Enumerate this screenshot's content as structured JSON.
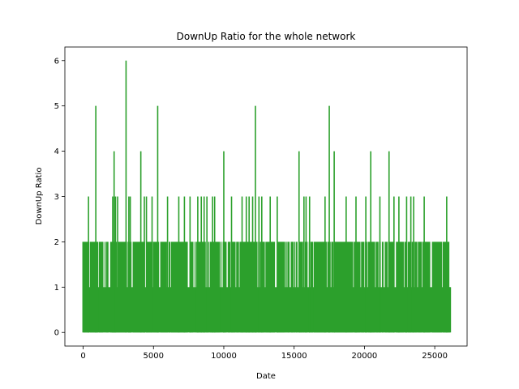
{
  "chart_data": {
    "type": "line",
    "title": "DownUp Ratio for the whole network",
    "xlabel": "Date",
    "ylabel": "DownUp Ratio",
    "xlim": [
      -1300,
      27300
    ],
    "ylim": [
      -0.3,
      6.3
    ],
    "xticks": [
      0,
      5000,
      10000,
      15000,
      20000,
      25000
    ],
    "yticks": [
      0,
      1,
      2,
      3,
      4,
      5,
      6
    ],
    "grid": false,
    "legend": "none",
    "series": [
      {
        "color": "#2ca02c",
        "x_range": [
          0,
          26100
        ],
        "baseline_band": [
          0,
          1
        ],
        "dense_level_2_spans": [
          [
            0,
            26100
          ]
        ],
        "peaks": [
          {
            "x": 380,
            "y": 3
          },
          {
            "x": 900,
            "y": 5
          },
          {
            "x": 2100,
            "y": 3
          },
          {
            "x": 2200,
            "y": 4
          },
          {
            "x": 2300,
            "y": 3
          },
          {
            "x": 2450,
            "y": 3
          },
          {
            "x": 3050,
            "y": 6
          },
          {
            "x": 3250,
            "y": 3
          },
          {
            "x": 3350,
            "y": 3
          },
          {
            "x": 4100,
            "y": 4
          },
          {
            "x": 4350,
            "y": 3
          },
          {
            "x": 4500,
            "y": 3
          },
          {
            "x": 4900,
            "y": 3
          },
          {
            "x": 5300,
            "y": 5
          },
          {
            "x": 6000,
            "y": 3
          },
          {
            "x": 6800,
            "y": 3
          },
          {
            "x": 7200,
            "y": 3
          },
          {
            "x": 7600,
            "y": 3
          },
          {
            "x": 8150,
            "y": 3
          },
          {
            "x": 8400,
            "y": 3
          },
          {
            "x": 8600,
            "y": 3
          },
          {
            "x": 8800,
            "y": 3
          },
          {
            "x": 9200,
            "y": 3
          },
          {
            "x": 9350,
            "y": 3
          },
          {
            "x": 10000,
            "y": 4
          },
          {
            "x": 10550,
            "y": 3
          },
          {
            "x": 11300,
            "y": 3
          },
          {
            "x": 11600,
            "y": 3
          },
          {
            "x": 11800,
            "y": 3
          },
          {
            "x": 12050,
            "y": 3
          },
          {
            "x": 12250,
            "y": 5
          },
          {
            "x": 12500,
            "y": 3
          },
          {
            "x": 12700,
            "y": 3
          },
          {
            "x": 13300,
            "y": 3
          },
          {
            "x": 13800,
            "y": 3
          },
          {
            "x": 15350,
            "y": 4
          },
          {
            "x": 15700,
            "y": 3
          },
          {
            "x": 15850,
            "y": 3
          },
          {
            "x": 16100,
            "y": 3
          },
          {
            "x": 17200,
            "y": 3
          },
          {
            "x": 17500,
            "y": 5
          },
          {
            "x": 17850,
            "y": 4
          },
          {
            "x": 18700,
            "y": 3
          },
          {
            "x": 19400,
            "y": 3
          },
          {
            "x": 20100,
            "y": 3
          },
          {
            "x": 20450,
            "y": 4
          },
          {
            "x": 21100,
            "y": 3
          },
          {
            "x": 21750,
            "y": 4
          },
          {
            "x": 22100,
            "y": 3
          },
          {
            "x": 22450,
            "y": 3
          },
          {
            "x": 23000,
            "y": 3
          },
          {
            "x": 23300,
            "y": 3
          },
          {
            "x": 23500,
            "y": 3
          },
          {
            "x": 24250,
            "y": 3
          },
          {
            "x": 25850,
            "y": 3
          }
        ]
      }
    ]
  }
}
